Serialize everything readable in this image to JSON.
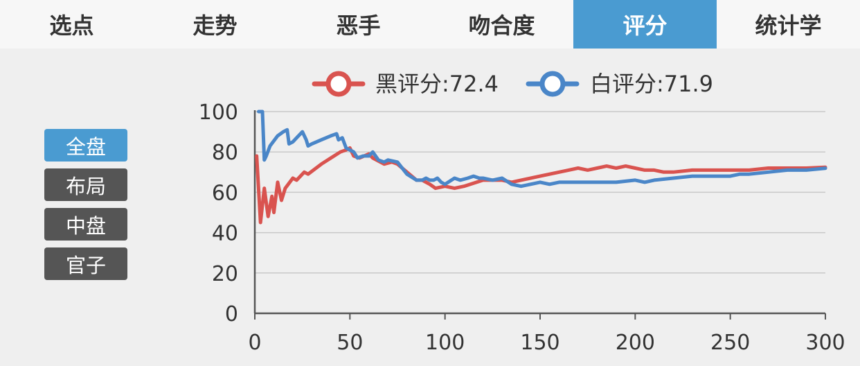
{
  "tabs": [
    {
      "label": "选点",
      "active": false
    },
    {
      "label": "走势",
      "active": false
    },
    {
      "label": "恶手",
      "active": false
    },
    {
      "label": "吻合度",
      "active": false
    },
    {
      "label": "评分",
      "active": true
    },
    {
      "label": "统计学",
      "active": false
    }
  ],
  "segments": [
    {
      "label": "全盘",
      "active": true
    },
    {
      "label": "布局",
      "active": false
    },
    {
      "label": "中盘",
      "active": false
    },
    {
      "label": "官子",
      "active": false
    }
  ],
  "colors": {
    "accent": "#4a9bd1",
    "black_series": "#d9534f",
    "white_series": "#4a86c8"
  },
  "chart_data": {
    "type": "line",
    "xlim": [
      0,
      300
    ],
    "ylim": [
      0,
      100
    ],
    "x_ticks": [
      0,
      50,
      100,
      150,
      200,
      250,
      300
    ],
    "y_ticks": [
      0,
      20,
      40,
      60,
      80,
      100
    ],
    "grid": true,
    "legend_position": "top",
    "series": [
      {
        "name": "黑评分:72.4",
        "color": "#d9534f",
        "points": [
          [
            1,
            78
          ],
          [
            3,
            45
          ],
          [
            5,
            62
          ],
          [
            7,
            48
          ],
          [
            9,
            58
          ],
          [
            10,
            50
          ],
          [
            12,
            65
          ],
          [
            14,
            56
          ],
          [
            16,
            62
          ],
          [
            20,
            67
          ],
          [
            22,
            66
          ],
          [
            26,
            70
          ],
          [
            28,
            69
          ],
          [
            35,
            74
          ],
          [
            40,
            77
          ],
          [
            45,
            80
          ],
          [
            48,
            81
          ],
          [
            50,
            82
          ],
          [
            52,
            78
          ],
          [
            55,
            77
          ],
          [
            60,
            79
          ],
          [
            62,
            77
          ],
          [
            66,
            75
          ],
          [
            68,
            74
          ],
          [
            72,
            75
          ],
          [
            75,
            74
          ],
          [
            80,
            70
          ],
          [
            85,
            66
          ],
          [
            88,
            66
          ],
          [
            92,
            64
          ],
          [
            95,
            62
          ],
          [
            100,
            63
          ],
          [
            105,
            62
          ],
          [
            110,
            63
          ],
          [
            120,
            66
          ],
          [
            125,
            66
          ],
          [
            130,
            66
          ],
          [
            135,
            65
          ],
          [
            140,
            66
          ],
          [
            150,
            68
          ],
          [
            160,
            70
          ],
          [
            165,
            71
          ],
          [
            170,
            72
          ],
          [
            175,
            71
          ],
          [
            180,
            72
          ],
          [
            185,
            73
          ],
          [
            190,
            72
          ],
          [
            195,
            73
          ],
          [
            200,
            72
          ],
          [
            205,
            71
          ],
          [
            210,
            71
          ],
          [
            215,
            70
          ],
          [
            220,
            70
          ],
          [
            230,
            71
          ],
          [
            240,
            71
          ],
          [
            250,
            71
          ],
          [
            260,
            71
          ],
          [
            270,
            72
          ],
          [
            280,
            72
          ],
          [
            290,
            72
          ],
          [
            300,
            72.4
          ]
        ]
      },
      {
        "name": "白评分:71.9",
        "color": "#4a86c8",
        "points": [
          [
            2,
            100
          ],
          [
            4,
            100
          ],
          [
            5,
            76
          ],
          [
            6,
            78
          ],
          [
            8,
            83
          ],
          [
            12,
            88
          ],
          [
            15,
            90
          ],
          [
            17,
            91
          ],
          [
            18,
            84
          ],
          [
            20,
            85
          ],
          [
            22,
            87
          ],
          [
            25,
            90
          ],
          [
            27,
            86
          ],
          [
            28,
            83
          ],
          [
            30,
            84
          ],
          [
            35,
            86
          ],
          [
            40,
            88
          ],
          [
            43,
            89
          ],
          [
            44,
            86
          ],
          [
            46,
            87
          ],
          [
            48,
            82
          ],
          [
            50,
            81
          ],
          [
            52,
            80
          ],
          [
            54,
            77
          ],
          [
            57,
            78
          ],
          [
            60,
            78
          ],
          [
            62,
            80
          ],
          [
            65,
            76
          ],
          [
            68,
            75
          ],
          [
            70,
            76
          ],
          [
            75,
            75
          ],
          [
            80,
            69
          ],
          [
            85,
            66
          ],
          [
            88,
            66
          ],
          [
            90,
            67
          ],
          [
            92,
            66
          ],
          [
            94,
            66
          ],
          [
            96,
            67
          ],
          [
            98,
            65
          ],
          [
            100,
            64
          ],
          [
            105,
            67
          ],
          [
            108,
            66
          ],
          [
            112,
            67
          ],
          [
            115,
            68
          ],
          [
            118,
            67
          ],
          [
            120,
            67
          ],
          [
            125,
            66
          ],
          [
            130,
            67
          ],
          [
            135,
            64
          ],
          [
            140,
            63
          ],
          [
            145,
            64
          ],
          [
            150,
            65
          ],
          [
            155,
            64
          ],
          [
            160,
            65
          ],
          [
            170,
            65
          ],
          [
            180,
            65
          ],
          [
            190,
            65
          ],
          [
            200,
            66
          ],
          [
            205,
            65
          ],
          [
            210,
            66
          ],
          [
            220,
            67
          ],
          [
            230,
            68
          ],
          [
            240,
            68
          ],
          [
            250,
            68
          ],
          [
            255,
            69
          ],
          [
            260,
            69
          ],
          [
            270,
            70
          ],
          [
            280,
            71
          ],
          [
            290,
            71
          ],
          [
            300,
            71.9
          ]
        ]
      }
    ]
  }
}
